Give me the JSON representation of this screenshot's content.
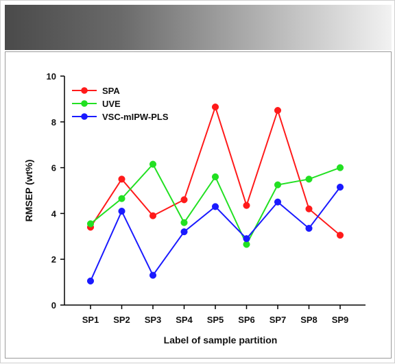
{
  "chart_data": {
    "type": "line",
    "title": "",
    "xlabel": "Label of sample partition",
    "ylabel": "RMSEP (wt%)",
    "categories": [
      "SP1",
      "SP2",
      "SP3",
      "SP4",
      "SP5",
      "SP6",
      "SP7",
      "SP8",
      "SP9"
    ],
    "ylim": [
      0,
      10
    ],
    "yticks": [
      0,
      2,
      4,
      6,
      8,
      10
    ],
    "grid": false,
    "legend_position": "top-left",
    "series": [
      {
        "name": "SPA",
        "color": "#ff1a1a",
        "values": [
          3.4,
          5.5,
          3.9,
          4.6,
          8.65,
          4.35,
          8.5,
          4.2,
          3.05
        ]
      },
      {
        "name": "UVE",
        "color": "#22e022",
        "values": [
          3.55,
          4.65,
          6.15,
          3.6,
          5.6,
          2.65,
          5.25,
          5.5,
          6.0
        ]
      },
      {
        "name": "VSC-mIPW-PLS",
        "color": "#1a1aff",
        "values": [
          1.05,
          4.1,
          1.3,
          3.2,
          4.3,
          2.9,
          4.5,
          3.35,
          5.15
        ]
      }
    ]
  }
}
